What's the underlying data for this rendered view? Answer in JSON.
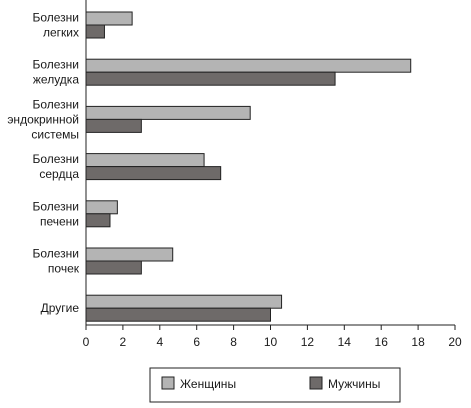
{
  "chart_data": {
    "type": "bar",
    "orientation": "horizontal",
    "categories": [
      [
        "Болезни",
        "легких"
      ],
      [
        "Болезни",
        "желудка"
      ],
      [
        "Болезни",
        "эндокринной",
        "системы"
      ],
      [
        "Болезни",
        "сердца"
      ],
      [
        "Болезни",
        "печени"
      ],
      [
        "Болезни",
        "почек"
      ],
      [
        "Другие"
      ]
    ],
    "series": [
      {
        "name": "Женщины",
        "color": "#b4b4b4",
        "values": [
          2.5,
          17.6,
          8.9,
          6.4,
          1.7,
          4.7,
          10.6
        ]
      },
      {
        "name": "Мужчины",
        "color": "#6e6a69",
        "values": [
          1.0,
          13.5,
          3.0,
          7.3,
          1.3,
          3.0,
          10.0
        ]
      }
    ],
    "xlim": [
      0,
      20
    ],
    "xticks": [
      0,
      2,
      4,
      6,
      8,
      10,
      12,
      14,
      16,
      18,
      20
    ],
    "grid": false,
    "legend_position": "bottom",
    "title": "",
    "xlabel": "",
    "ylabel": ""
  }
}
